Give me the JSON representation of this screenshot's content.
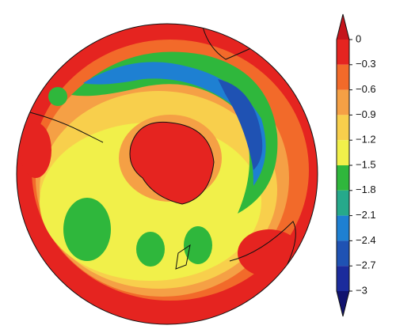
{
  "colorbar": {
    "lim": [
      -3,
      0
    ],
    "ticks": [
      0,
      {
        "value": -0.3,
        "label": "−0.3"
      },
      {
        "value": -0.6,
        "label": "−0.6"
      },
      {
        "value": -0.9,
        "label": "−0.9"
      },
      {
        "value": -1.2,
        "label": "−1.2"
      },
      {
        "value": -1.5,
        "label": "−1.5"
      },
      {
        "value": -1.8,
        "label": "−1.8"
      },
      {
        "value": -2.1,
        "label": "−2.1"
      },
      {
        "value": -2.4,
        "label": "−2.4"
      },
      {
        "value": -2.7,
        "label": "−2.7"
      },
      {
        "value": -3,
        "label": "−3"
      }
    ],
    "colors": [
      "#e52420",
      "#f26a2a",
      "#f5a045",
      "#f8cf4c",
      "#f1f04a",
      "#2fb73c",
      "#26a98b",
      "#1e80d2",
      "#1f52b3",
      "#1b2b9c"
    ],
    "extend_colors": [
      "#c5141b",
      "#11136e"
    ]
  }
}
